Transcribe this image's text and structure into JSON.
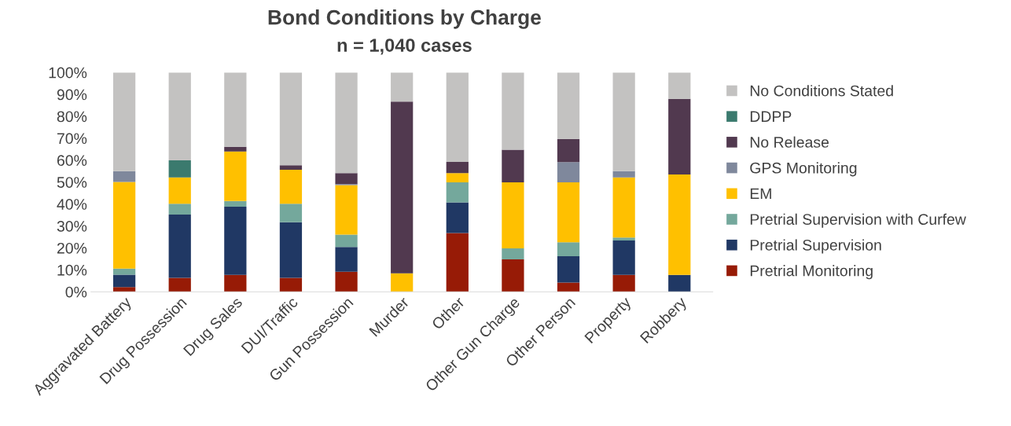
{
  "chart_data": {
    "type": "bar",
    "stacked": true,
    "title": "Bond Conditions by Charge",
    "subtitle": "n = 1,040 cases",
    "categories": [
      "Aggravated Battery",
      "Drug Possession",
      "Drug Sales",
      "DUI/Traffic",
      "Gun Possession",
      "Murder",
      "Other",
      "Other Gun Charge",
      "Other Person",
      "Property",
      "Robbery"
    ],
    "series": [
      {
        "name": "Pretrial Monitoring",
        "color": "#971b06",
        "values": [
          2.2,
          6.4,
          7.7,
          6.4,
          9.1,
          0,
          26.8,
          14.8,
          4.2,
          7.7,
          0
        ]
      },
      {
        "name": "Pretrial Supervision",
        "color": "#203864",
        "values": [
          5.6,
          28.8,
          31.1,
          25.3,
          11.3,
          0,
          14.0,
          0,
          12.0,
          15.7,
          7.7
        ]
      },
      {
        "name": "Pretrial Supervision with Curfew",
        "color": "#74a89c",
        "values": [
          2.8,
          4.9,
          2.6,
          8.4,
          5.7,
          0,
          9.1,
          5.0,
          6.4,
          1.3,
          0
        ]
      },
      {
        "name": "EM",
        "color": "#ffc000",
        "values": [
          39.5,
          12.0,
          22.6,
          15.5,
          22.5,
          8.4,
          4.2,
          30.1,
          27.3,
          27.4,
          45.8
        ]
      },
      {
        "name": "GPS Monitoring",
        "color": "#7f889c",
        "values": [
          4.9,
          0,
          0,
          0,
          0.5,
          0,
          0,
          0,
          9.2,
          2.9,
          0
        ]
      },
      {
        "name": "No Release",
        "color": "#51394f",
        "values": [
          0,
          0,
          2.1,
          2.1,
          5.0,
          78.3,
          5.1,
          14.9,
          10.6,
          0,
          34.5
        ]
      },
      {
        "name": "DDPP",
        "color": "#3b7a6e",
        "values": [
          0,
          7.8,
          0,
          0,
          0,
          0,
          0,
          0,
          0,
          0,
          0
        ]
      },
      {
        "name": "No Conditions Stated",
        "color": "#c3c2c1",
        "values": [
          45.0,
          40.1,
          33.9,
          42.3,
          45.9,
          13.3,
          40.8,
          35.2,
          30.3,
          45.0,
          12.0
        ]
      }
    ],
    "ylim": [
      0,
      100
    ],
    "yticks": [
      {
        "value": 0,
        "label": "0%"
      },
      {
        "value": 10,
        "label": "10%"
      },
      {
        "value": 20,
        "label": "20%"
      },
      {
        "value": 30,
        "label": "30%"
      },
      {
        "value": 40,
        "label": "40%"
      },
      {
        "value": 50,
        "label": "50%"
      },
      {
        "value": 60,
        "label": "60%"
      },
      {
        "value": 70,
        "label": "70%"
      },
      {
        "value": 80,
        "label": "80%"
      },
      {
        "value": 90,
        "label": "90%"
      },
      {
        "value": 100,
        "label": "100%"
      }
    ],
    "grid": false,
    "legend": "right"
  }
}
